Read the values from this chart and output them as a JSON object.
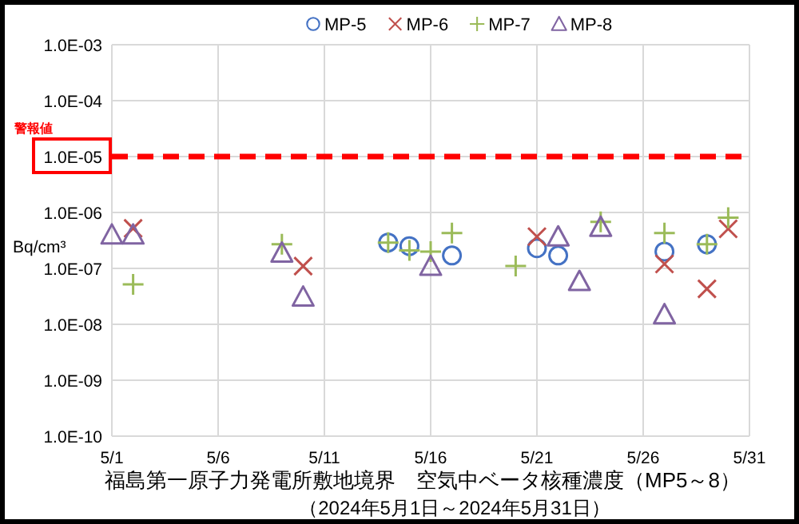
{
  "chart_data": {
    "type": "scatter",
    "title": "福島第一原子力発電所敷地境界　空気中ベータ核種濃度（MP5～8）",
    "subtitle": "（2024年5月1日～2024年5月31日）",
    "ylabel": "Bq/cm³",
    "log": "y",
    "grid": true,
    "legend": "top",
    "xlim": [
      "--05-01",
      "--05-31"
    ],
    "xticks": [
      {
        "value": "--05-01",
        "label": "5/1"
      },
      {
        "value": "--05-06",
        "label": "5/6"
      },
      {
        "value": "--05-11",
        "label": "5/11"
      },
      {
        "value": "--05-16",
        "label": "5/16"
      },
      {
        "value": "--05-21",
        "label": "5/21"
      },
      {
        "value": "--05-26",
        "label": "5/26"
      },
      {
        "value": "--05-31",
        "label": "5/31"
      }
    ],
    "ylim": [
      1e-10,
      0.001
    ],
    "yticks": [
      {
        "value": 1e-10,
        "label": "1.0E-10"
      },
      {
        "value": 1e-09,
        "label": "1.0E-09"
      },
      {
        "value": 1e-08,
        "label": "1.0E-08"
      },
      {
        "value": 1e-07,
        "label": "1.0E-07"
      },
      {
        "value": 1e-06,
        "label": "1.0E-06"
      },
      {
        "value": 1e-05,
        "label": "1.0E-05"
      },
      {
        "value": 0.0001,
        "label": "1.0E-04"
      },
      {
        "value": 0.001,
        "label": "1.0E-03"
      }
    ],
    "ref_lines": [
      {
        "axis": "y",
        "value": 1e-05,
        "label": "警報値",
        "color": "#ff0000",
        "line_style": "dashed"
      }
    ],
    "series": [
      {
        "name": "MP-5",
        "color": "#4472c4",
        "marker": "circle",
        "x": [
          "--05-14",
          "--05-15",
          "--05-17",
          "--05-21",
          "--05-22",
          "--05-27",
          "--05-29"
        ],
        "values": [
          2.9e-07,
          2.5e-07,
          1.7e-07,
          2.3e-07,
          1.7e-07,
          2e-07,
          2.7e-07
        ]
      },
      {
        "name": "MP-6",
        "color": "#c0504d",
        "marker": "cross",
        "x": [
          "--05-02",
          "--05-10",
          "--05-21",
          "--05-27",
          "--05-29",
          "--05-30"
        ],
        "values": [
          5.2e-07,
          1.1e-07,
          3.7e-07,
          1.2e-07,
          4.3e-08,
          5.1e-07
        ]
      },
      {
        "name": "MP-7",
        "color": "#9bbb59",
        "marker": "plus",
        "x": [
          "--05-02",
          "--05-09",
          "--05-14",
          "--05-15",
          "--05-16",
          "--05-17",
          "--05-20",
          "--05-24",
          "--05-27",
          "--05-29",
          "--05-30"
        ],
        "values": [
          5.2e-08,
          2.7e-07,
          2.9e-07,
          2.1e-07,
          2e-07,
          4.3e-07,
          1.1e-07,
          6.8e-07,
          4.3e-07,
          2.7e-07,
          8.1e-07
        ]
      },
      {
        "name": "MP-8",
        "color": "#8064a2",
        "marker": "triangle",
        "x": [
          "--05-01",
          "--05-02",
          "--05-09",
          "--05-10",
          "--05-16",
          "--05-22",
          "--05-23",
          "--05-24",
          "--05-27"
        ],
        "values": [
          4e-07,
          4e-07,
          1.9e-07,
          3.1e-08,
          1.1e-07,
          3.7e-07,
          5.9e-08,
          5.5e-07,
          1.5e-08
        ]
      }
    ]
  }
}
